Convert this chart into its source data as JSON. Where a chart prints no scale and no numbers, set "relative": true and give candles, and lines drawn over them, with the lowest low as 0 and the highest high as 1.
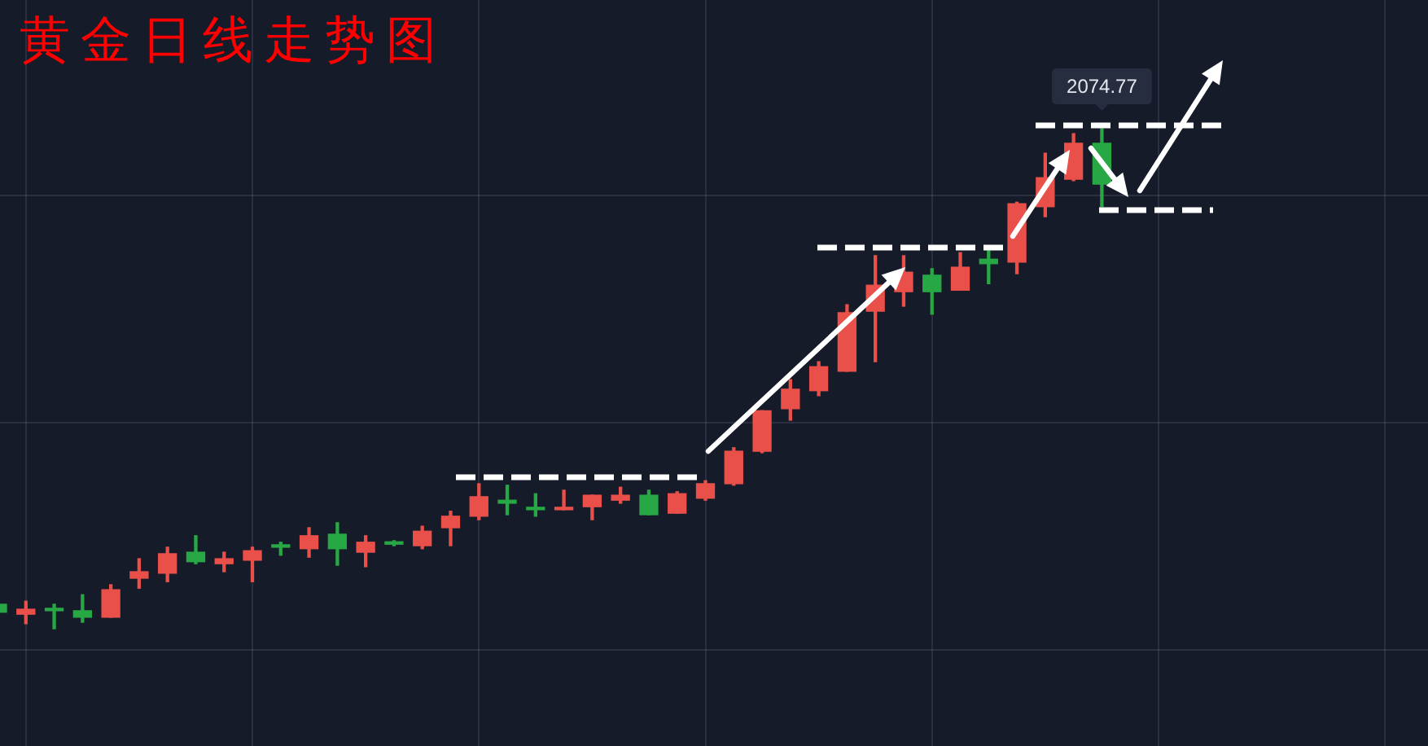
{
  "chart_data": {
    "type": "candlestick",
    "title": "黄金日线走势图",
    "categories": [
      null,
      null,
      null,
      null,
      null,
      null,
      null,
      null,
      null,
      null,
      null,
      null,
      null,
      null,
      null,
      null,
      null,
      null,
      null,
      null,
      null,
      null,
      null,
      null,
      null,
      null,
      null,
      null,
      null,
      null,
      null,
      null,
      null,
      null,
      null,
      null,
      null,
      null,
      null,
      null
    ],
    "ohlc": [
      [
        0.049,
        0.052,
        0.029,
        0.033
      ],
      [
        0.029,
        0.055,
        0.01,
        0.039
      ],
      [
        0.039,
        0.049,
        0,
        0.036
      ],
      [
        0.036,
        0.068,
        0.013,
        0.023
      ],
      [
        0.023,
        0.088,
        0.023,
        0.078
      ],
      [
        0.101,
        0.14,
        0.081,
        0.114
      ],
      [
        0.111,
        0.163,
        0.094,
        0.15
      ],
      [
        0.153,
        0.186,
        0.13,
        0.134
      ],
      [
        0.13,
        0.153,
        0.114,
        0.14
      ],
      [
        0.137,
        0.163,
        0.094,
        0.156
      ],
      [
        0.166,
        0.173,
        0.147,
        0.163
      ],
      [
        0.16,
        0.202,
        0.143,
        0.186
      ],
      [
        0.189,
        0.212,
        0.127,
        0.16
      ],
      [
        0.153,
        0.186,
        0.124,
        0.173
      ],
      [
        0.173,
        0.176,
        0.166,
        0.169
      ],
      [
        0.166,
        0.205,
        0.16,
        0.195
      ],
      [
        0.202,
        0.235,
        0.166,
        0.225
      ],
      [
        0.225,
        0.29,
        0.218,
        0.264
      ],
      [
        0.257,
        0.287,
        0.228,
        0.251
      ],
      [
        0.241,
        0.27,
        0.225,
        0.238
      ],
      [
        0.238,
        0.277,
        0.238,
        0.241
      ],
      [
        0.244,
        0.267,
        0.218,
        0.267
      ],
      [
        0.257,
        0.283,
        0.251,
        0.267
      ],
      [
        0.267,
        0.277,
        0.228,
        0.228
      ],
      [
        0.231,
        0.274,
        0.231,
        0.27
      ],
      [
        0.261,
        0.296,
        0.257,
        0.29
      ],
      [
        0.29,
        0.362,
        0.287,
        0.355
      ],
      [
        0.355,
        0.436,
        0.352,
        0.436
      ],
      [
        0.44,
        0.498,
        0.417,
        0.479
      ],
      [
        0.476,
        0.534,
        0.466,
        0.524
      ],
      [
        0.515,
        0.648,
        0.515,
        0.632
      ],
      [
        0.635,
        0.746,
        0.534,
        0.687
      ],
      [
        0.674,
        0.746,
        0.645,
        0.713
      ],
      [
        0.707,
        0.72,
        0.629,
        0.674
      ],
      [
        0.677,
        0.752,
        0.677,
        0.723
      ],
      [
        0.739,
        0.756,
        0.69,
        0.73
      ],
      [
        0.733,
        0.853,
        0.71,
        0.85
      ],
      [
        0.844,
        0.951,
        0.824,
        0.902
      ],
      [
        0.899,
        0.99,
        0.896,
        0.971
      ],
      [
        0.971,
        1,
        0.844,
        0.889
      ]
    ],
    "colors": [
      "#27a844",
      "#e9504a",
      "#27a844",
      "#27a844",
      "#e9504a",
      "#e9504a",
      "#e9504a",
      "#27a844",
      "#e9504a",
      "#e9504a",
      "#27a844",
      "#e9504a",
      "#27a844",
      "#e9504a",
      "#27a844",
      "#e9504a",
      "#e9504a",
      "#e9504a",
      "#27a844",
      "#27a844",
      "#e9504a",
      "#e9504a",
      "#e9504a",
      "#27a844",
      "#e9504a",
      "#e9504a",
      "#e9504a",
      "#e9504a",
      "#e9504a",
      "#e9504a",
      "#e9504a",
      "#e9504a",
      "#e9504a",
      "#27a844",
      "#e9504a",
      "#27a844",
      "#e9504a",
      "#e9504a",
      "#e9504a",
      "#27a844"
    ],
    "relative": true,
    "grid": true,
    "annotations": [
      "2074.77"
    ]
  }
}
